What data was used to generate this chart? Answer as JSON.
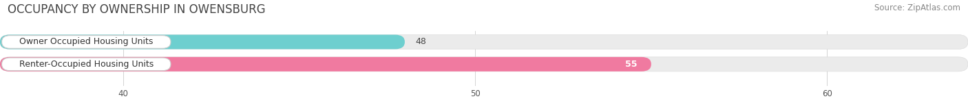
{
  "title": "OCCUPANCY BY OWNERSHIP IN OWENSBURG",
  "source": "Source: ZipAtlas.com",
  "categories": [
    "Owner Occupied Housing Units",
    "Renter-Occupied Housing Units"
  ],
  "values": [
    48,
    55
  ],
  "bar_colors": [
    "#6ecfcf",
    "#f07aa0"
  ],
  "bar_bg_color": "#ebebeb",
  "value_colors": [
    "#444444",
    "#ffffff"
  ],
  "xlim": [
    36.5,
    64
  ],
  "xticks": [
    40,
    50,
    60
  ],
  "title_fontsize": 12,
  "source_fontsize": 8.5,
  "label_fontsize": 9,
  "value_fontsize": 9,
  "background_color": "#ffffff"
}
